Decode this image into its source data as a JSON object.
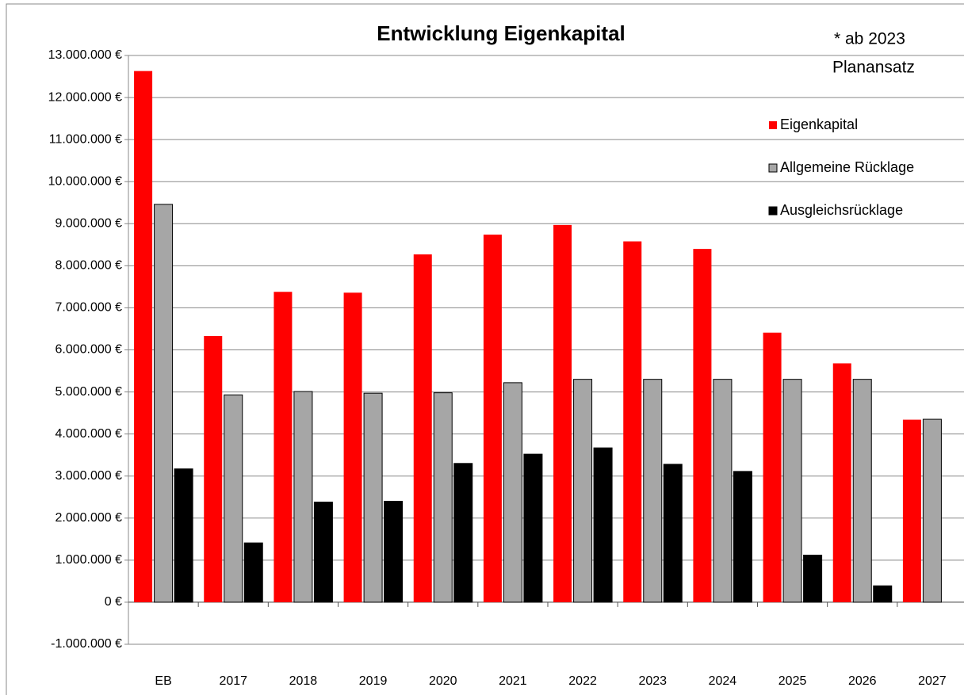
{
  "chart_data": {
    "type": "bar",
    "title": "Entwicklung Eigenkapital",
    "annotation": [
      "* ab 2023",
      "Planansatz"
    ],
    "categories": [
      "EB",
      "2017",
      "2018",
      "2019",
      "2020",
      "2021",
      "2022",
      "2023",
      "2024",
      "2025",
      "2026",
      "2027"
    ],
    "series": [
      {
        "name": "Eigenkapital",
        "color": "#ff0000",
        "values": [
          12630000,
          6330000,
          7380000,
          7360000,
          8270000,
          8740000,
          8970000,
          8580000,
          8400000,
          6410000,
          5680000,
          4340000
        ]
      },
      {
        "name": "Allgemeine Rücklage",
        "color": "#a6a6a6",
        "values": [
          9460000,
          4930000,
          5010000,
          4970000,
          4980000,
          5220000,
          5300000,
          5300000,
          5300000,
          5300000,
          5300000,
          4350000
        ]
      },
      {
        "name": "Ausgleichsrücklage",
        "color": "#000000",
        "values": [
          3170000,
          1410000,
          2380000,
          2400000,
          3300000,
          3520000,
          3670000,
          3280000,
          3110000,
          1120000,
          390000,
          null
        ]
      }
    ],
    "ylim": [
      -1000000,
      13000000
    ],
    "yticks": [
      {
        "value": -1000000,
        "label": "-1.000.000 €"
      },
      {
        "value": 0,
        "label": "0 €"
      },
      {
        "value": 1000000,
        "label": "1.000.000 €"
      },
      {
        "value": 2000000,
        "label": "2.000.000 €"
      },
      {
        "value": 3000000,
        "label": "3.000.000 €"
      },
      {
        "value": 4000000,
        "label": "4.000.000 €"
      },
      {
        "value": 5000000,
        "label": "5.000.000 €"
      },
      {
        "value": 6000000,
        "label": "6.000.000 €"
      },
      {
        "value": 7000000,
        "label": "7.000.000 €"
      },
      {
        "value": 8000000,
        "label": "8.000.000 €"
      },
      {
        "value": 9000000,
        "label": "9.000.000 €"
      },
      {
        "value": 10000000,
        "label": "10.000.000 €"
      },
      {
        "value": 11000000,
        "label": "11.000.000 €"
      },
      {
        "value": 12000000,
        "label": "12.000.000 €"
      },
      {
        "value": 13000000,
        "label": "13.000.000 €"
      }
    ],
    "grid": true,
    "legend": "upper right"
  }
}
